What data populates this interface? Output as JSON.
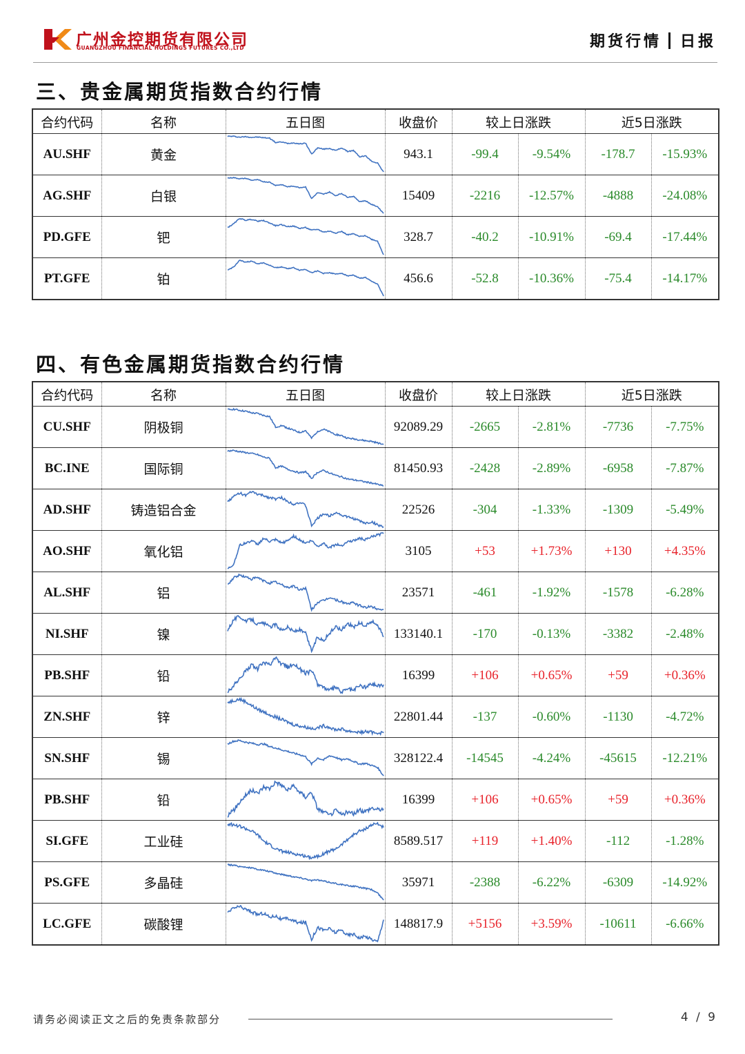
{
  "header": {
    "company_cn": "广州金控期货有限公司",
    "company_en": "GUANGZHOU FINANCIAL HOLDINGS FUTURES CO.,LTD",
    "report_type": "期货行情",
    "report_freq": "日报"
  },
  "colors": {
    "brand": "#c0111b",
    "up": "#e8222a",
    "down": "#2a8a2a",
    "line": "#3f72c1"
  },
  "columns": {
    "code": "合约代码",
    "name": "名称",
    "chart": "五日图",
    "close": "收盘价",
    "daily_change": "较上日涨跌",
    "five_day_change": "近5日涨跌"
  },
  "sections": [
    {
      "title": "三、贵金属期货指数合约行情",
      "rows": [
        {
          "code": "AU.SHF",
          "name": "黄金",
          "close": "943.1",
          "d_chg": "-99.4",
          "d_pct": "-9.54%",
          "w_chg": "-178.7",
          "w_pct": "-15.93%",
          "trend": [
            100,
            100,
            99.5,
            99.8,
            99.4,
            99.6,
            99.2,
            99.0,
            96.5,
            96.8,
            96.0,
            96.3,
            95.8,
            96.1,
            90.0,
            93.5,
            92.8,
            93.2,
            92.0,
            93.5,
            91.5,
            92.0,
            88.5,
            89.0,
            86.0,
            85.0,
            80.0
          ]
        },
        {
          "code": "AG.SHF",
          "name": "白银",
          "close": "15409",
          "d_chg": "-2216",
          "d_pct": "-12.57%",
          "w_chg": "-4888",
          "w_pct": "-24.08%",
          "trend": [
            100,
            100.3,
            99.5,
            99.8,
            98.5,
            98.8,
            97.5,
            97.2,
            95.0,
            95.5,
            94.0,
            94.5,
            93.5,
            94.0,
            86.0,
            90.0,
            89.0,
            90.5,
            88.0,
            89.5,
            87.0,
            87.5,
            84.0,
            84.5,
            82.0,
            80.5,
            76.0
          ]
        },
        {
          "code": "PD.GFE",
          "name": "钯",
          "close": "328.7",
          "d_chg": "-40.2",
          "d_pct": "-10.91%",
          "w_chg": "-69.4",
          "w_pct": "-17.44%",
          "trend": [
            95,
            97,
            100,
            99,
            99.5,
            98.5,
            98.8,
            97.5,
            96.0,
            96.5,
            95.5,
            95.8,
            94.5,
            95.0,
            93.5,
            94.0,
            92.5,
            93.0,
            92.0,
            92.8,
            91.0,
            91.5,
            90.0,
            90.5,
            88.5,
            87.5,
            80.0
          ]
        },
        {
          "code": "PT.GFE",
          "name": "铂",
          "close": "456.6",
          "d_chg": "-52.8",
          "d_pct": "-10.36%",
          "w_chg": "-75.4",
          "w_pct": "-14.17%",
          "trend": [
            94,
            96,
            100,
            99,
            99.5,
            98.0,
            98.5,
            97.0,
            95.5,
            96.0,
            95.0,
            95.5,
            94.0,
            94.5,
            92.5,
            93.5,
            92.0,
            92.5,
            91.5,
            92.2,
            90.5,
            91.0,
            89.0,
            89.5,
            87.0,
            85.5,
            78.0
          ]
        }
      ]
    },
    {
      "title": "四、有色金属期货指数合约行情",
      "rows": [
        {
          "code": "CU.SHF",
          "name": "阴极铜",
          "close": "92089.29",
          "d_chg": "-2665",
          "d_pct": "-2.81%",
          "w_chg": "-7736",
          "w_pct": "-7.75%",
          "trend": [
            100,
            100.2,
            99.8,
            99.5,
            99.0,
            98.8,
            98.2,
            97.8,
            94.5,
            95.0,
            94.2,
            93.5,
            92.8,
            93.4,
            91.0,
            93.2,
            93.8,
            93.0,
            92.2,
            91.8,
            91.0,
            90.8,
            90.5,
            90.2,
            90.0,
            89.5,
            89.0
          ]
        },
        {
          "code": "BC.INE",
          "name": "国际铜",
          "close": "81450.93",
          "d_chg": "-2428",
          "d_pct": "-2.89%",
          "w_chg": "-6958",
          "w_pct": "-7.87%",
          "trend": [
            100,
            100.2,
            99.8,
            99.5,
            99.2,
            98.8,
            98.0,
            97.6,
            94.5,
            95.0,
            94.0,
            93.4,
            92.8,
            93.2,
            91.0,
            93.0,
            93.6,
            92.8,
            92.0,
            91.5,
            90.8,
            90.5,
            90.2,
            89.8,
            89.5,
            89.0,
            88.5
          ]
        },
        {
          "code": "AD.SHF",
          "name": "铸造铝合金",
          "close": "22526",
          "d_chg": "-304",
          "d_pct": "-1.33%",
          "w_chg": "-1309",
          "w_pct": "-5.49%",
          "trend": [
            98,
            99,
            99.8,
            99.2,
            100,
            99.5,
            99.2,
            98.8,
            98.5,
            98.8,
            98.0,
            97.5,
            97.8,
            97.2,
            93.0,
            94.5,
            95.5,
            95.0,
            95.8,
            95.2,
            94.8,
            94.5,
            94.0,
            93.5,
            93.8,
            93.2,
            92.8
          ]
        },
        {
          "code": "AO.SHF",
          "name": "氧化铝",
          "close": "3105",
          "d_chg": "+53",
          "d_pct": "+1.73%",
          "w_chg": "+130",
          "w_pct": "+4.35%",
          "trend": [
            93,
            94,
            98,
            98.5,
            99,
            98.2,
            99.5,
            98.8,
            99.2,
            98.5,
            99.0,
            100,
            99.2,
            98.5,
            99.0,
            97.8,
            98.5,
            97.5,
            98.2,
            98.0,
            98.8,
            99.0,
            99.5,
            99.2,
            99.8,
            100.2,
            100.5
          ]
        },
        {
          "code": "AL.SHF",
          "name": "铝",
          "close": "23571",
          "d_chg": "-461",
          "d_pct": "-1.92%",
          "w_chg": "-1578",
          "w_pct": "-6.28%",
          "trend": [
            98,
            99.5,
            100,
            99.6,
            99.2,
            99.5,
            98.8,
            98.4,
            98.6,
            98.0,
            97.5,
            97.8,
            97.0,
            97.4,
            93.0,
            94.5,
            94.8,
            95.5,
            95.0,
            94.6,
            94.2,
            94.4,
            93.8,
            93.5,
            93.6,
            93.2,
            93.0
          ]
        },
        {
          "code": "NI.SHF",
          "name": "镍",
          "close": "133140.1",
          "d_chg": "-170",
          "d_pct": "-0.13%",
          "w_chg": "-3382",
          "w_pct": "-2.48%",
          "trend": [
            98,
            99.5,
            100,
            99.2,
            99.6,
            98.8,
            99.0,
            98.4,
            98.8,
            98.0,
            98.4,
            97.8,
            98.0,
            97.5,
            95.0,
            97.0,
            96.5,
            97.5,
            98.5,
            98.0,
            99.0,
            98.4,
            99.0,
            98.6,
            99.2,
            98.8,
            97.0
          ]
        },
        {
          "code": "PB.SHF",
          "name": "铅",
          "close": "16399",
          "d_chg": "+106",
          "d_pct": "+0.65%",
          "w_chg": "+59",
          "w_pct": "+0.36%",
          "trend": [
            96,
            96.8,
            97.5,
            98.6,
            99.2,
            98.8,
            99.6,
            99.2,
            100,
            99.4,
            99.0,
            99.4,
            98.8,
            98.2,
            98.6,
            97.0,
            96.6,
            96.2,
            96.6,
            96.0,
            96.4,
            96.2,
            96.8,
            96.6,
            97.0,
            96.8,
            96.9
          ]
        },
        {
          "code": "ZN.SHF",
          "name": "锌",
          "close": "22801.44",
          "d_chg": "-137",
          "d_pct": "-0.60%",
          "w_chg": "-1130",
          "w_pct": "-4.72%",
          "trend": [
            99.5,
            99.8,
            100,
            99.6,
            99.0,
            98.4,
            98.0,
            97.6,
            97.2,
            96.8,
            96.4,
            96.0,
            95.8,
            95.6,
            95.4,
            95.5,
            95.8,
            95.6,
            95.2,
            95.3,
            95.0,
            94.9,
            94.8,
            94.9,
            94.8,
            94.7,
            94.7
          ]
        },
        {
          "code": "SN.SHF",
          "name": "锡",
          "close": "328122.4",
          "d_chg": "-14545",
          "d_pct": "-4.24%",
          "w_chg": "-45615",
          "w_pct": "-12.21%",
          "trend": [
            99,
            99.8,
            100,
            99.5,
            99.2,
            98.8,
            99.0,
            98.2,
            97.8,
            97.2,
            96.8,
            96.2,
            95.8,
            95.2,
            93.0,
            94.8,
            94.2,
            95.5,
            95.0,
            94.2,
            94.6,
            93.8,
            93.0,
            93.2,
            92.6,
            92.0,
            89.5
          ]
        },
        {
          "code": "PB.SHF",
          "name": "铅",
          "close": "16399",
          "d_chg": "+106",
          "d_pct": "+0.65%",
          "w_chg": "+59",
          "w_pct": "+0.36%",
          "trend": [
            96,
            96.6,
            97.6,
            98.4,
            99.0,
            98.6,
            99.4,
            99.2,
            100,
            99.6,
            99.0,
            99.5,
            98.8,
            98.2,
            98.8,
            96.8,
            96.4,
            96.0,
            96.6,
            96.1,
            96.4,
            96.2,
            96.6,
            96.5,
            96.9,
            96.7,
            96.8
          ]
        },
        {
          "code": "SI.GFE",
          "name": "工业硅",
          "close": "8589.517",
          "d_chg": "+119",
          "d_pct": "+1.40%",
          "w_chg": "-112",
          "w_pct": "-1.28%",
          "trend": [
            100,
            99.8,
            99.6,
            99.2,
            98.8,
            98.2,
            97.2,
            96.6,
            96.0,
            95.6,
            95.4,
            95.2,
            95.0,
            94.8,
            94.6,
            94.8,
            95.2,
            95.6,
            96.0,
            96.6,
            97.5,
            98.2,
            98.8,
            99.2,
            99.8,
            100,
            99.4
          ]
        },
        {
          "code": "PS.GFE",
          "name": "多晶硅",
          "close": "35971",
          "d_chg": "-2388",
          "d_pct": "-6.22%",
          "w_chg": "-6309",
          "w_pct": "-14.92%",
          "trend": [
            100,
            99.8,
            99.4,
            99.2,
            98.8,
            98.4,
            98.0,
            97.6,
            97.0,
            96.6,
            96.2,
            95.8,
            95.4,
            95.0,
            94.4,
            94.6,
            94.2,
            93.8,
            93.4,
            93.0,
            92.6,
            92.4,
            92.0,
            91.6,
            91.2,
            90.0,
            87.5
          ]
        },
        {
          "code": "LC.GFE",
          "name": "碳酸锂",
          "close": "148817.9",
          "d_chg": "+5156",
          "d_pct": "+3.59%",
          "w_chg": "-10611",
          "w_pct": "-6.66%",
          "trend": [
            99,
            99.8,
            100,
            99.6,
            99.2,
            98.8,
            99.0,
            98.4,
            98.6,
            98.0,
            98.2,
            97.8,
            97.5,
            97.6,
            95.0,
            96.8,
            96.4,
            96.6,
            96.0,
            96.4,
            95.6,
            95.8,
            95.2,
            95.4,
            95.0,
            94.6,
            98.0
          ]
        }
      ]
    }
  ],
  "footer": {
    "disclaimer": "请务必阅读正文之后的免责条款部分",
    "page": "4 / 9"
  }
}
